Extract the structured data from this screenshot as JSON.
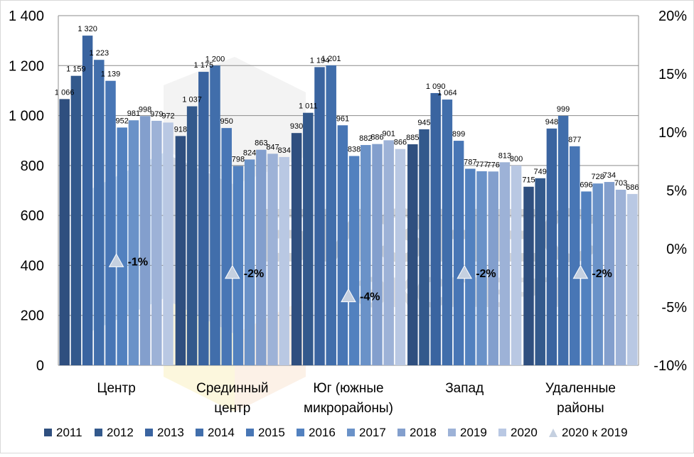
{
  "chart_data": {
    "type": "bar",
    "title": "",
    "xlabel": "",
    "ylabel": "",
    "ylim": [
      0,
      1400
    ],
    "y_ticks": [
      "0",
      "200",
      "400",
      "600",
      "800",
      "1 000",
      "1 200",
      "1 400"
    ],
    "y2lim": [
      -10,
      20
    ],
    "y2_ticks": [
      "-10%",
      "-5%",
      "0%",
      "5%",
      "10%",
      "15%",
      "20%"
    ],
    "grid": true,
    "legend_position": "bottom",
    "categories": [
      [
        "Центр"
      ],
      [
        "Срединный",
        "центр"
      ],
      [
        "Юг (южные",
        "микрорайоны)"
      ],
      [
        "Запад"
      ],
      [
        "Удаленные",
        "районы"
      ]
    ],
    "series": [
      {
        "name": "2011",
        "color": "#2f4f7f",
        "values": [
          1066,
          918,
          930,
          885,
          715
        ],
        "labels": [
          "1 066",
          "918",
          "930",
          "885",
          "715"
        ]
      },
      {
        "name": "2012",
        "color": "#33598c",
        "values": [
          1159,
          1037,
          1011,
          945,
          749
        ],
        "labels": [
          "1 159",
          "1 037",
          "1 011",
          "945",
          "749"
        ]
      },
      {
        "name": "2013",
        "color": "#3a64a0",
        "values": [
          1320,
          1175,
          1194,
          1090,
          948
        ],
        "labels": [
          "1 320",
          "1 175",
          "1 194",
          "1 090",
          "948"
        ]
      },
      {
        "name": "2014",
        "color": "#416eab",
        "values": [
          1223,
          1200,
          1201,
          1064,
          999
        ],
        "labels": [
          "1 223",
          "1 200",
          "1 201",
          "1 064",
          "999"
        ]
      },
      {
        "name": "2015",
        "color": "#4876b5",
        "values": [
          1139,
          950,
          961,
          899,
          877
        ],
        "labels": [
          "1 139",
          "950",
          "961",
          "899",
          "877"
        ]
      },
      {
        "name": "2016",
        "color": "#5281bf",
        "values": [
          952,
          798,
          838,
          787,
          696
        ],
        "labels": [
          "952",
          "798",
          "838",
          "787",
          "696"
        ]
      },
      {
        "name": "2017",
        "color": "#6a92c8",
        "values": [
          981,
          824,
          882,
          777,
          728
        ],
        "labels": [
          "981",
          "824",
          "882",
          "777",
          "728"
        ]
      },
      {
        "name": "2018",
        "color": "#839fcd",
        "values": [
          998,
          863,
          886,
          776,
          734
        ],
        "labels": [
          "998",
          "863",
          "886",
          "776",
          "734"
        ]
      },
      {
        "name": "2019",
        "color": "#9db2d7",
        "values": [
          979,
          847,
          901,
          813,
          703
        ],
        "labels": [
          "979",
          "847",
          "901",
          "813",
          "703"
        ]
      },
      {
        "name": "2020",
        "color": "#b9c8e3",
        "values": [
          972,
          834,
          866,
          800,
          686
        ],
        "labels": [
          "972",
          "834",
          "866",
          "800",
          "686"
        ]
      }
    ],
    "change_series": {
      "name": "2020 к 2019",
      "marker": "triangle",
      "color": "#c5d0e0",
      "axis": "secondary",
      "values": [
        -1,
        -2,
        -4,
        -2,
        -2
      ],
      "labels": [
        "-1%",
        "-2%",
        "-4%",
        "-2%",
        "-2%"
      ]
    },
    "legend": [
      "2011",
      "2012",
      "2013",
      "2014",
      "2015",
      "2016",
      "2017",
      "2018",
      "2019",
      "2020",
      "2020 к 2019"
    ]
  },
  "watermark": {
    "line1": "БИЗНЕС",
    "line2": "ЭКСПЕРТ"
  },
  "colors": {
    "grid": "#8c8c8c",
    "text": "#000000",
    "plot_border": "#d9d9d9"
  }
}
